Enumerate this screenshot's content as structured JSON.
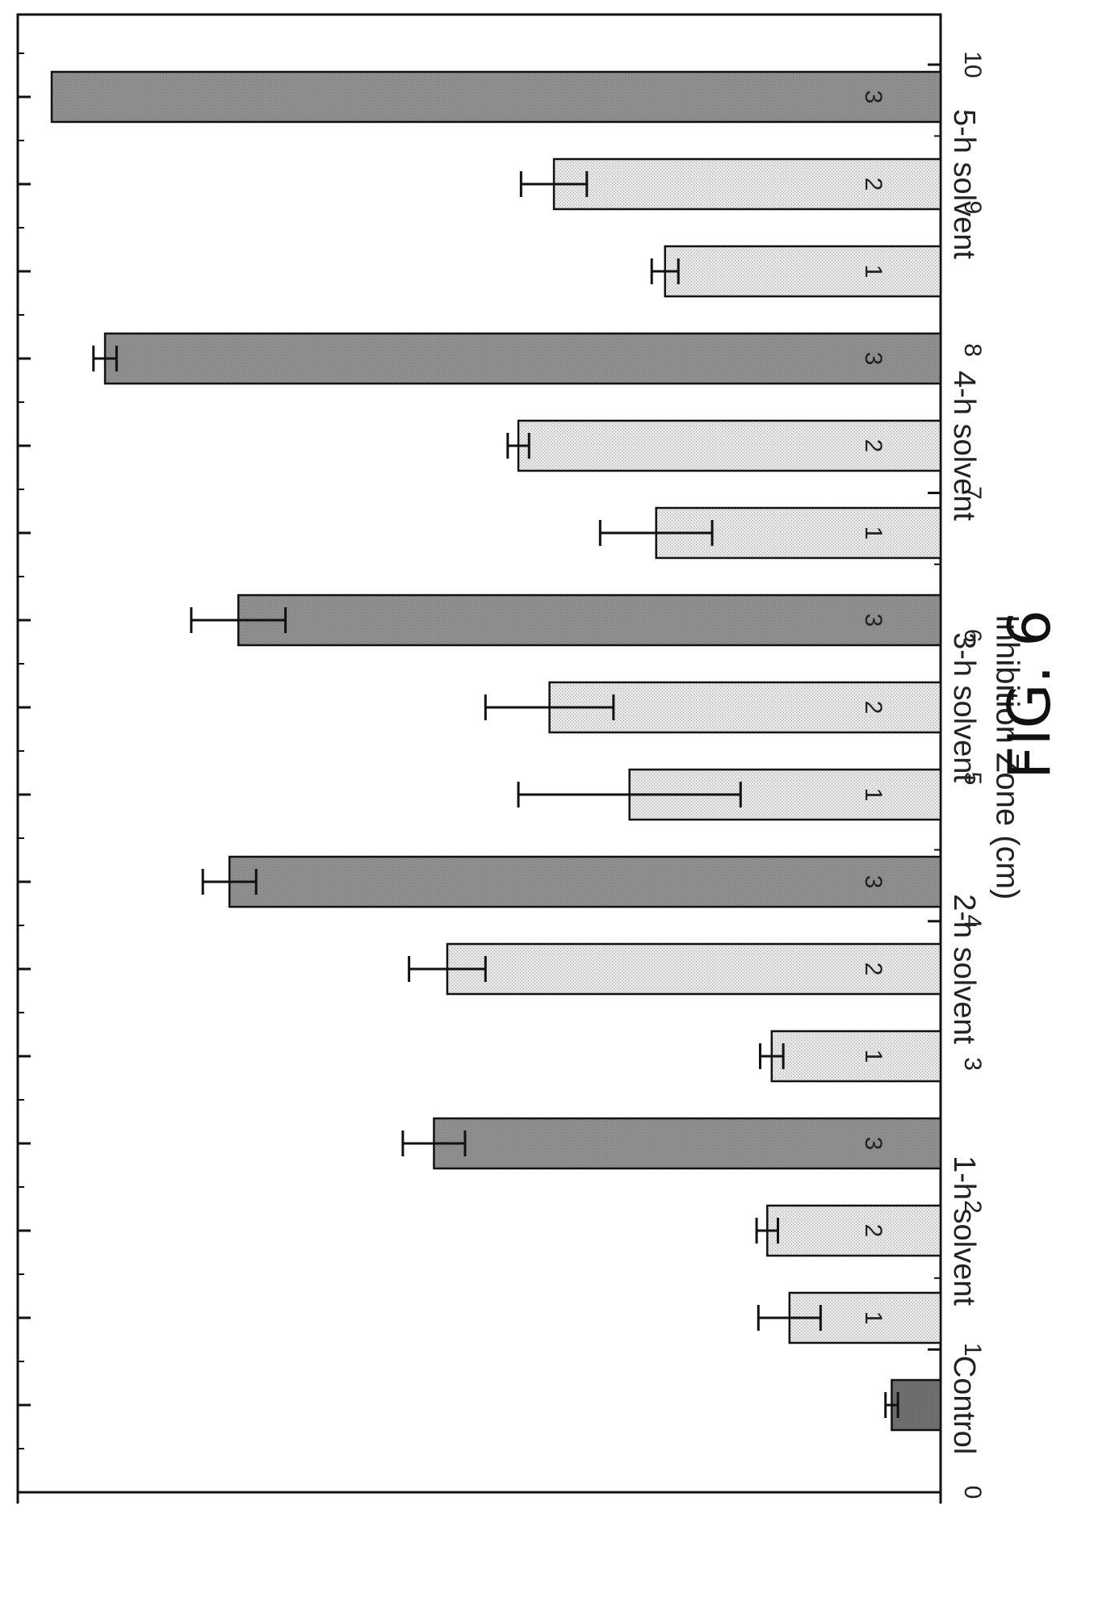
{
  "figure_label": "FIG. 6",
  "chart_data": {
    "type": "bar",
    "orientation": "rotated-90-ccw",
    "ylabel": "Inhibition Zone (cm)",
    "xlabel": "",
    "ylim": [
      0,
      10.3
    ],
    "yticks": [
      "0",
      "1",
      "2",
      "3",
      "4",
      "5",
      "6",
      "7",
      "8",
      "9",
      "10"
    ],
    "grid": false,
    "group_labels": [
      "Control",
      "1-h solvent",
      "2-h solvent",
      "3-h solvent",
      "4-h solvent",
      "5-h solvent"
    ],
    "bars": [
      {
        "group": "Control",
        "label": "",
        "value": 0.55,
        "error": 0.07,
        "shade": "dark"
      },
      {
        "group": "1-h solvent",
        "label": "1",
        "value": 1.7,
        "error": 0.35,
        "shade": "light"
      },
      {
        "group": "1-h solvent",
        "label": "2",
        "value": 1.95,
        "error": 0.12,
        "shade": "light"
      },
      {
        "group": "1-h solvent",
        "label": "3",
        "value": 5.7,
        "error": 0.35,
        "shade": "dark"
      },
      {
        "group": "2-h solvent",
        "label": "1",
        "value": 1.9,
        "error": 0.13,
        "shade": "light"
      },
      {
        "group": "2-h solvent",
        "label": "2",
        "value": 5.55,
        "error": 0.43,
        "shade": "light"
      },
      {
        "group": "2-h solvent",
        "label": "3",
        "value": 8.0,
        "error": 0.3,
        "shade": "dark"
      },
      {
        "group": "3-h solvent",
        "label": "1",
        "value": 3.5,
        "error": 1.25,
        "shade": "light"
      },
      {
        "group": "3-h solvent",
        "label": "2",
        "value": 4.4,
        "error": 0.72,
        "shade": "light"
      },
      {
        "group": "3-h solvent",
        "label": "3",
        "value": 7.9,
        "error": 0.53,
        "shade": "dark"
      },
      {
        "group": "4-h solvent",
        "label": "1",
        "value": 3.2,
        "error": 0.63,
        "shade": "light"
      },
      {
        "group": "4-h solvent",
        "label": "2",
        "value": 4.75,
        "error": 0.12,
        "shade": "light"
      },
      {
        "group": "4-h solvent",
        "label": "3",
        "value": 9.4,
        "error": 0.13,
        "shade": "dark"
      },
      {
        "group": "5-h solvent",
        "label": "1",
        "value": 3.1,
        "error": 0.15,
        "shade": "light"
      },
      {
        "group": "5-h solvent",
        "label": "2",
        "value": 4.35,
        "error": 0.37,
        "shade": "light"
      },
      {
        "group": "5-h solvent",
        "label": "3",
        "value": 10.0,
        "error": 0,
        "shade": "dark"
      }
    ],
    "colors": {
      "dark": "#8f8f8f",
      "light": "#e4e4e4",
      "control": "#6e6e6e",
      "stroke": "#111111"
    }
  }
}
